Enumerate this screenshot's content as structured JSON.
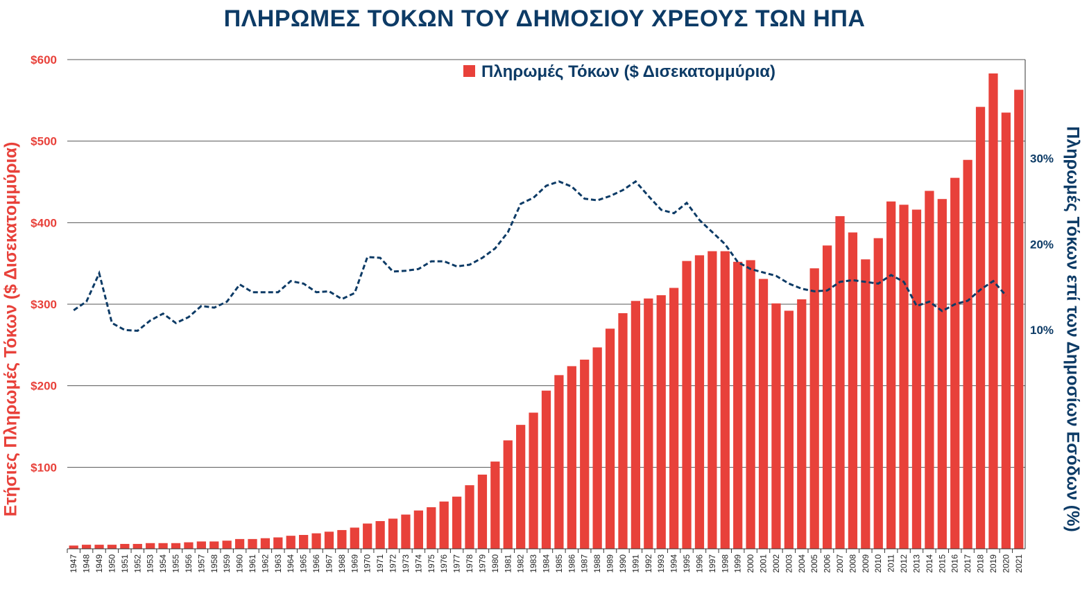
{
  "chart_data": {
    "type": "bar",
    "title": "ΠΛΗΡΩΜΕΣ ΤΟΚΩΝ ΤΟΥ ΔΗΜΟΣΙΟΥ ΧΡΕΟΥΣ  ΤΩΝ ΗΠΑ",
    "ylabel": "Ετήσιες Πληρωμές Τόκων ($ Δισεκατομμύρια)",
    "y2label": "Πληρωμές Τόκων επί των Δημοσίων Εσόδων (%)",
    "ylim": [
      0,
      600
    ],
    "y2lim": [
      -15.5,
      41.5
    ],
    "yticks": [
      "$100",
      "$200",
      "$300",
      "$400",
      "$500",
      "$600"
    ],
    "y2ticks": [
      "10%",
      "20%",
      "30%"
    ],
    "grid": true,
    "legend": "top-center",
    "colors": {
      "bars": "#e8413a",
      "line": "#0d3b66",
      "left_axis": "#e8413a",
      "right_axis": "#0d3b66"
    },
    "categories": [
      "1947",
      "1948",
      "1949",
      "1950",
      "1951",
      "1952",
      "1953",
      "1954",
      "1955",
      "1956",
      "1957",
      "1958",
      "1959",
      "1960",
      "1961",
      "1962",
      "1963",
      "1964",
      "1965",
      "1966",
      "1967",
      "1968",
      "1969",
      "1970",
      "1971",
      "1972",
      "1973",
      "1974",
      "1975",
      "1976",
      "1977",
      "1978",
      "1979",
      "1980",
      "1981",
      "1982",
      "1983",
      "1984",
      "1985",
      "1986",
      "1987",
      "1988",
      "1989",
      "1990",
      "1991",
      "1992",
      "1993",
      "1994",
      "1995",
      "1996",
      "1997",
      "1998",
      "1999",
      "2000",
      "2001",
      "2002",
      "2003",
      "2004",
      "2005",
      "2006",
      "2007",
      "2008",
      "2009",
      "2010",
      "2011",
      "2012",
      "2013",
      "2014",
      "2015",
      "2016",
      "2017",
      "2018",
      "2019",
      "2020",
      "2021"
    ],
    "series": [
      {
        "name": "Πληρωμές Τόκων ($ Δισεκατομμύρια)",
        "type": "bar",
        "axis": "left",
        "values": [
          4,
          5,
          5,
          5,
          6,
          6,
          7,
          7,
          7,
          8,
          9,
          9,
          10,
          12,
          12,
          13,
          14,
          16,
          17,
          19,
          21,
          23,
          26,
          31,
          34,
          37,
          42,
          47,
          51,
          58,
          64,
          78,
          91,
          107,
          133,
          152,
          167,
          194,
          213,
          224,
          232,
          247,
          270,
          289,
          304,
          307,
          311,
          320,
          353,
          360,
          365,
          365,
          352,
          354,
          331,
          301,
          292,
          306,
          344,
          372,
          408,
          388,
          355,
          381,
          426,
          422,
          416,
          439,
          429,
          455,
          477,
          542,
          583,
          535,
          563
        ]
      },
      {
        "name": "",
        "type": "line",
        "axis": "right",
        "style": "dashed",
        "values": [
          12.3,
          13.3,
          16.6,
          10.8,
          10.0,
          9.9,
          11.1,
          11.9,
          10.8,
          11.5,
          12.8,
          12.6,
          13.3,
          15.3,
          14.4,
          14.4,
          14.4,
          15.7,
          15.4,
          14.4,
          14.5,
          13.6,
          14.3,
          18.5,
          18.4,
          16.8,
          16.9,
          17.1,
          18.0,
          18.0,
          17.4,
          17.6,
          18.4,
          19.5,
          21.4,
          24.7,
          25.4,
          26.8,
          27.3,
          26.7,
          25.3,
          25.1,
          25.6,
          26.3,
          27.3,
          25.6,
          24.0,
          23.6,
          24.8,
          22.8,
          21.4,
          20.0,
          17.9,
          17.1,
          16.7,
          16.3,
          15.4,
          14.8,
          14.5,
          14.6,
          15.6,
          15.8,
          15.6,
          15.4,
          16.4,
          15.6,
          12.8,
          13.3,
          12.2,
          13.0,
          13.4,
          14.7,
          15.7,
          14.0,
          null
        ]
      }
    ]
  }
}
